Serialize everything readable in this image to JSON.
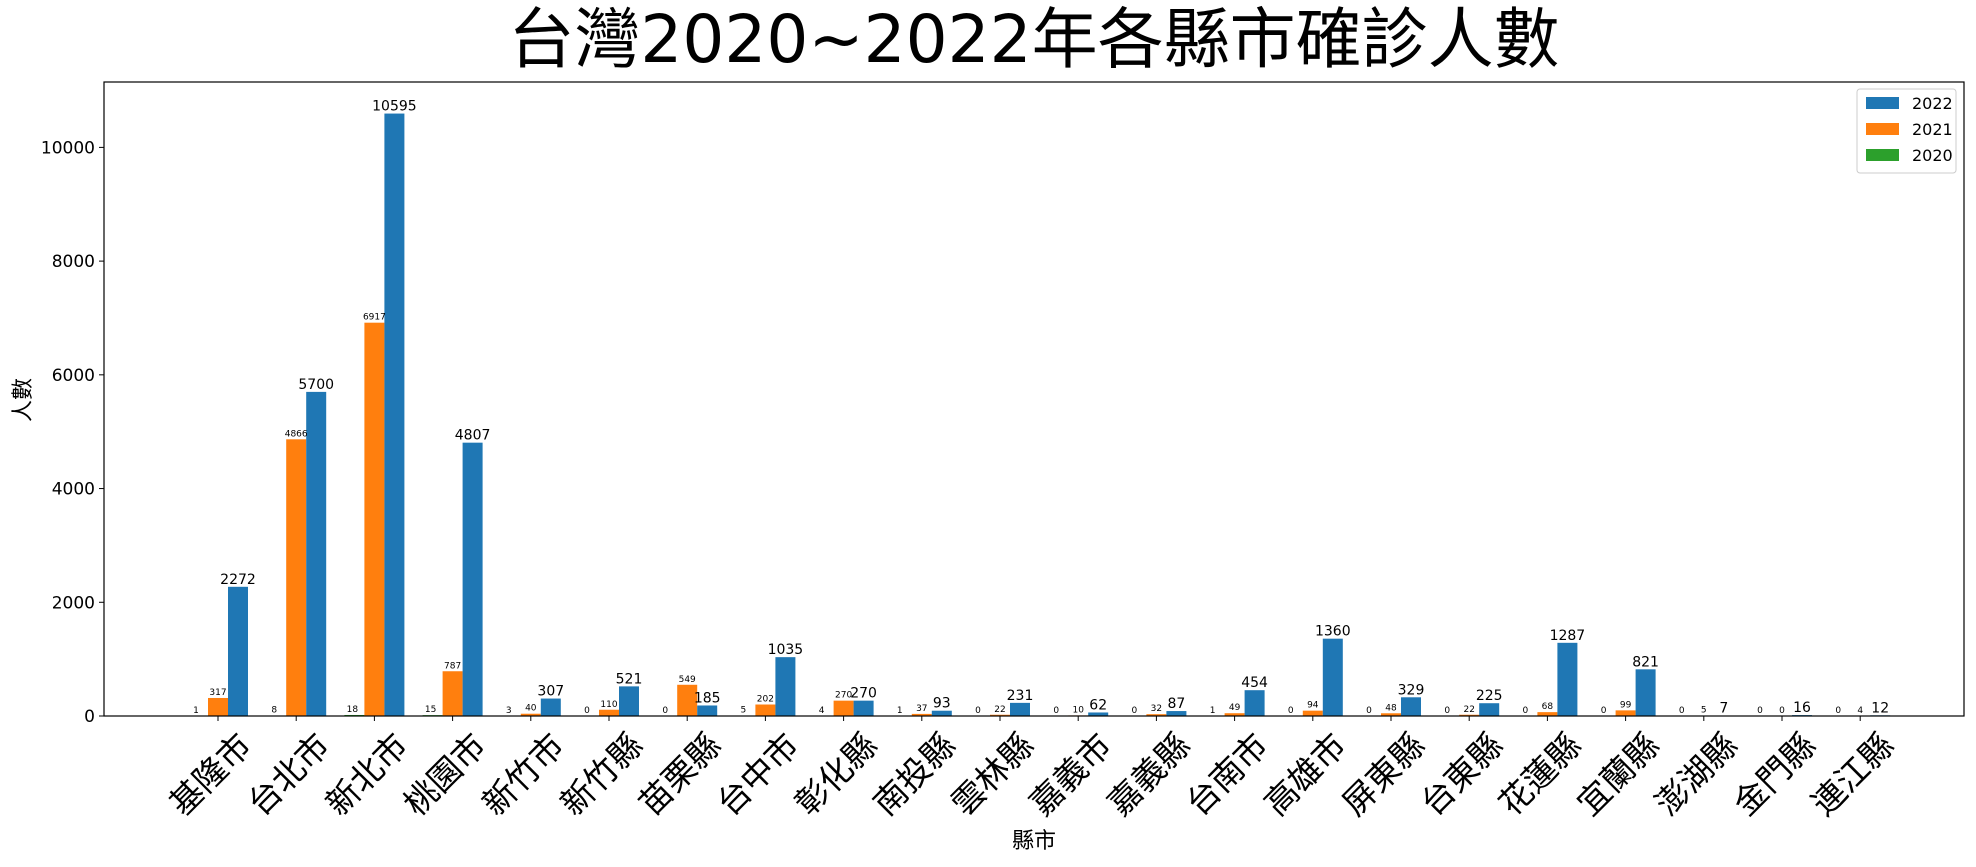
{
  "chart_data": {
    "type": "bar",
    "title": "台灣2020~2022年各縣市確診人數",
    "xlabel": "縣市",
    "ylabel": "人數",
    "ylim": [
      0,
      11150
    ],
    "yticks": [
      0,
      2000,
      4000,
      6000,
      8000,
      10000
    ],
    "grid": false,
    "legend_position": "top-right",
    "categories": [
      "基隆市",
      "台北市",
      "新北市",
      "桃園市",
      "新竹市",
      "新竹縣",
      "苗栗縣",
      "台中市",
      "彰化縣",
      "南投縣",
      "雲林縣",
      "嘉義市",
      "嘉義縣",
      "台南市",
      "高雄市",
      "屏東縣",
      "台東縣",
      "花蓮縣",
      "宜蘭縣",
      "澎湖縣",
      "金門縣",
      "連江縣"
    ],
    "series": [
      {
        "name": "2022",
        "color": "#1f77b4",
        "values": [
          2272,
          5700,
          10595,
          4807,
          307,
          521,
          185,
          1035,
          270,
          93,
          231,
          62,
          87,
          454,
          1360,
          329,
          225,
          1287,
          821,
          7,
          16,
          12
        ]
      },
      {
        "name": "2021",
        "color": "#ff7f0e",
        "values": [
          317,
          4866,
          6917,
          787,
          40,
          110,
          549,
          202,
          270,
          37,
          22,
          10,
          32,
          49,
          94,
          48,
          22,
          68,
          99,
          5,
          0,
          4
        ]
      },
      {
        "name": "2020",
        "color": "#2ca02c",
        "values": [
          1,
          8,
          18,
          15,
          3,
          0,
          0,
          5,
          4,
          1,
          0,
          0,
          0,
          1,
          0,
          0,
          0,
          0,
          0,
          0,
          0,
          0
        ]
      }
    ]
  }
}
